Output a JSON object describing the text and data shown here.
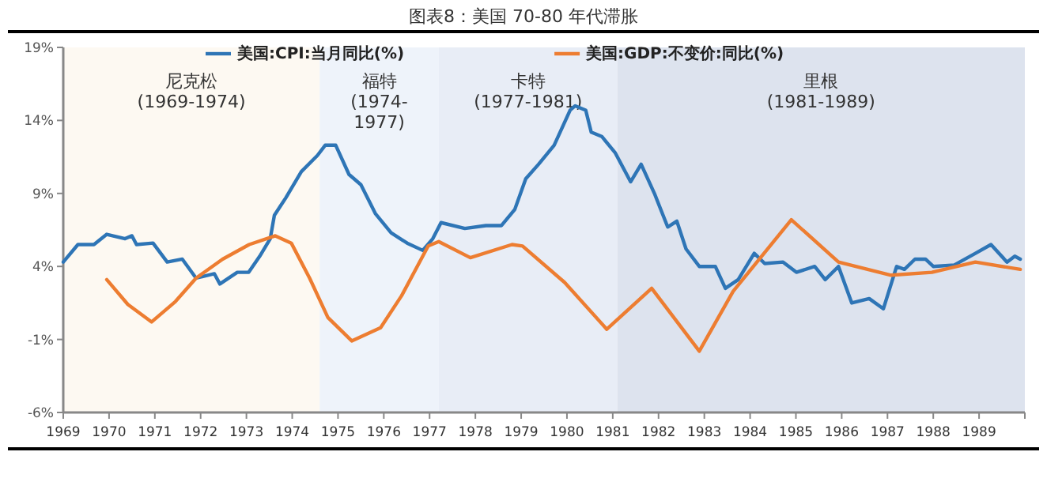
{
  "chart_data": {
    "type": "line",
    "title": "图表8：美国 70-80 年代滞胀",
    "xlim": [
      1969,
      1990
    ],
    "xticks": [
      1969,
      1970,
      1971,
      1972,
      1973,
      1974,
      1975,
      1976,
      1977,
      1978,
      1979,
      1980,
      1981,
      1982,
      1983,
      1984,
      1985,
      1986,
      1987,
      1988,
      1989
    ],
    "ylim": [
      -6,
      19
    ],
    "yticks": [
      {
        "value": -6,
        "label": "-6%"
      },
      {
        "value": -1,
        "label": "-1%"
      },
      {
        "value": 4,
        "label": "4%"
      },
      {
        "value": 9,
        "label": "9%"
      },
      {
        "value": 14,
        "label": "14%"
      },
      {
        "value": 19,
        "label": "19%"
      }
    ],
    "grid": false,
    "legend": "top",
    "marker": "none",
    "line_style": "solid",
    "bands": [
      {
        "axis": "x",
        "from": 1969,
        "to": 1974.6,
        "label": "尼克松\n(1969-1974)",
        "color": "#fdf9f2"
      },
      {
        "axis": "x",
        "from": 1974.6,
        "to": 1977.2,
        "label": "福特\n(1974-\n1977)",
        "color": "#eef3fa"
      },
      {
        "axis": "x",
        "from": 1977.2,
        "to": 1981.1,
        "label": "卡特\n(1977-1981)",
        "color": "#e8edf6"
      },
      {
        "axis": "x",
        "from": 1981.1,
        "to": 1990,
        "label": "里根\n(1981-1989)",
        "color": "#dde3ee"
      }
    ],
    "series": [
      {
        "name": "美国:CPI:当月同比(%)",
        "color": "#2e75b6",
        "x": [
          1969.0,
          1969.32,
          1969.67,
          1969.95,
          1970.35,
          1970.5,
          1970.6,
          1970.96,
          1971.27,
          1971.6,
          1971.9,
          1972.3,
          1972.42,
          1972.8,
          1973.05,
          1973.29,
          1973.52,
          1973.61,
          1973.86,
          1974.2,
          1974.55,
          1974.72,
          1974.95,
          1975.24,
          1975.5,
          1975.82,
          1976.16,
          1976.51,
          1976.85,
          1977.07,
          1977.25,
          1977.77,
          1978.23,
          1978.57,
          1978.86,
          1979.1,
          1979.38,
          1979.72,
          1980.07,
          1980.18,
          1980.41,
          1980.53,
          1980.76,
          1981.05,
          1981.39,
          1981.62,
          1981.91,
          1982.2,
          1982.4,
          1982.6,
          1982.89,
          1983.24,
          1983.46,
          1983.74,
          1984.09,
          1984.32,
          1984.72,
          1985.01,
          1985.41,
          1985.64,
          1985.93,
          1986.22,
          1986.6,
          1986.91,
          1987.2,
          1987.37,
          1987.6,
          1987.83,
          1988.0,
          1988.46,
          1988.92,
          1989.26,
          1989.61,
          1989.78,
          1989.9
        ],
        "values": [
          4.3,
          5.5,
          5.5,
          6.2,
          5.9,
          6.1,
          5.5,
          5.6,
          4.3,
          4.5,
          3.2,
          3.5,
          2.8,
          3.6,
          3.6,
          4.7,
          5.9,
          7.5,
          8.7,
          10.5,
          11.6,
          12.3,
          12.3,
          10.3,
          9.6,
          7.6,
          6.3,
          5.6,
          5.1,
          5.9,
          7.0,
          6.6,
          6.8,
          6.8,
          7.9,
          10.0,
          11.0,
          12.3,
          14.7,
          15.0,
          14.7,
          13.2,
          12.9,
          11.8,
          9.8,
          11.0,
          9.0,
          6.7,
          7.1,
          5.2,
          4.0,
          4.0,
          2.5,
          3.1,
          4.9,
          4.2,
          4.3,
          3.6,
          4.0,
          3.1,
          4.0,
          1.5,
          1.8,
          1.1,
          4.0,
          3.8,
          4.5,
          4.5,
          4.0,
          4.1,
          4.9,
          5.5,
          4.3,
          4.7,
          4.5
        ]
      },
      {
        "name": "美国:GDP:不变价:同比(%)",
        "color": "#ed7d31",
        "x": [
          1969.95,
          1970.41,
          1970.93,
          1971.45,
          1971.9,
          1972.48,
          1973.06,
          1973.63,
          1973.98,
          1974.38,
          1974.78,
          1975.3,
          1975.93,
          1976.39,
          1976.97,
          1977.2,
          1977.89,
          1978.8,
          1979.03,
          1979.95,
          1980.87,
          1981.85,
          1982.89,
          1983.63,
          1984.9,
          1985.93,
          1987.08,
          1987.97,
          1988.92,
          1989.9
        ],
        "values": [
          3.1,
          1.4,
          0.2,
          1.6,
          3.2,
          4.5,
          5.5,
          6.1,
          5.6,
          3.2,
          0.5,
          -1.1,
          -0.2,
          2.0,
          5.4,
          5.7,
          4.6,
          5.5,
          5.4,
          2.9,
          -0.3,
          2.5,
          -1.8,
          2.3,
          7.2,
          4.3,
          3.4,
          3.6,
          4.3,
          3.8
        ]
      }
    ]
  }
}
